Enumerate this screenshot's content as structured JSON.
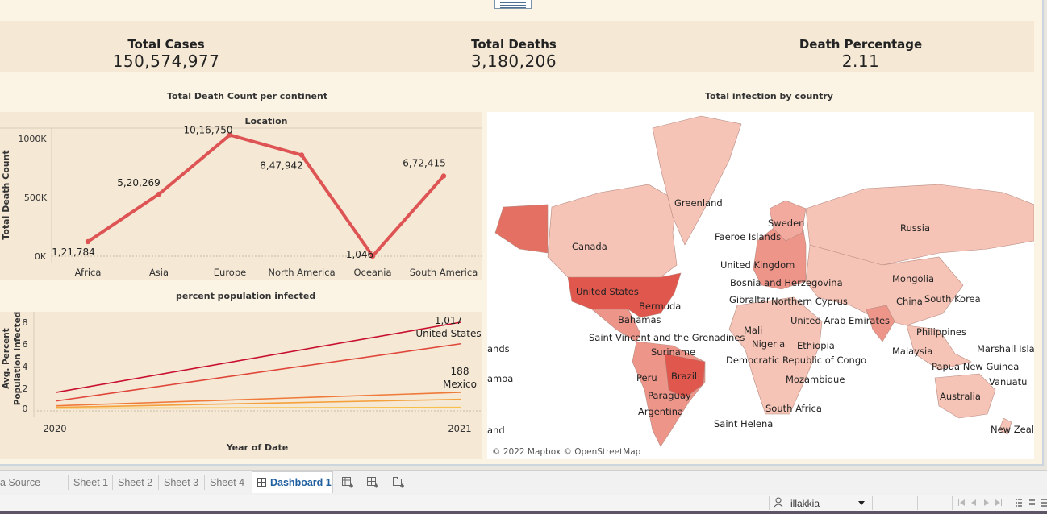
{
  "kpis": [
    {
      "title": "Total Cases",
      "value": "150,574,977"
    },
    {
      "title": "Total Deaths",
      "value": "3,180,206"
    },
    {
      "title": "Death Percentage",
      "value": "2.11"
    }
  ],
  "death_chart": {
    "section_title": "Total Death Count per continent",
    "header": "Location",
    "ylabel": "Total Death Count",
    "ticks": [
      "1000K",
      "500K",
      "0K"
    ]
  },
  "infection_chart": {
    "section_title": "percent population infected",
    "ylabel_line1": "Avg. Percent",
    "ylabel_line2": "Population Infected",
    "xlabel": "Year of Date",
    "yticks": [
      "8",
      "6",
      "4",
      "2",
      "0"
    ],
    "xticks": [
      "2020",
      "2021"
    ],
    "annotations": [
      {
        "value": "1,017",
        "label": "United States"
      },
      {
        "value": "188",
        "label": "Mexico"
      }
    ]
  },
  "chart_data": [
    {
      "type": "line",
      "title": "Total Death Count per continent",
      "xlabel": "Location",
      "ylabel": "Total Death Count",
      "categories": [
        "Africa",
        "Asia",
        "Europe",
        "North America",
        "Oceania",
        "South America"
      ],
      "values": [
        121784,
        520269,
        1016750,
        847942,
        1046,
        672415
      ],
      "labels": [
        "1,21,784",
        "5,20,269",
        "10,16,750",
        "8,47,942",
        "1,046",
        "6,72,415"
      ],
      "ylim": [
        0,
        1050000
      ],
      "color": "#de5454"
    },
    {
      "type": "line",
      "title": "percent population infected",
      "xlabel": "Year of Date",
      "ylabel": "Avg. Percent Population Infected",
      "x": [
        2020,
        2021
      ],
      "ylim": [
        -0.3,
        9
      ],
      "series": [
        {
          "name": "United States",
          "values": [
            1.5,
            8.0
          ],
          "color": "#c8102e"
        },
        {
          "name": "",
          "values": [
            0.7,
            6.0
          ],
          "color": "#e0473b"
        },
        {
          "name": "Mexico",
          "values": [
            0.25,
            1.5
          ],
          "color": "#f07a3a"
        },
        {
          "name": "",
          "values": [
            0.1,
            0.85
          ],
          "color": "#f5a03a"
        },
        {
          "name": "",
          "values": [
            0.02,
            0.1
          ],
          "color": "#f7c04a"
        }
      ]
    }
  ],
  "map": {
    "section_title": "Total infection by country",
    "credit": "© 2022 Mapbox © OpenStreetMap",
    "labels": [
      "Greenland",
      "Sweden",
      "Faeroe Islands",
      "Russia",
      "Canada",
      "United Kingdom",
      "Bosnia and Herzegovina",
      "Mongolia",
      "United States",
      "Gibraltar",
      "Northern Cyprus",
      "China",
      "South Korea",
      "Bermuda",
      "Bahamas",
      "United Arab Emirates",
      "Philippines",
      "Saint Vincent and the Grenadines",
      "Mali",
      "Nigeria",
      "Ethiopia",
      "Malaysia",
      "Marshall Isla",
      "Suriname",
      "Democratic Republic of Congo",
      "Papua New Guinea",
      "Peru",
      "Brazil",
      "Mozambique",
      "Vanuatu",
      "Paraguay",
      "Australia",
      "South Africa",
      "Argentina",
      "Saint Helena",
      "New Zeal",
      "ands",
      "amoa",
      "and"
    ]
  },
  "tabs": {
    "data_source": "a Source",
    "sheets": [
      "Sheet 1",
      "Sheet 2",
      "Sheet 3",
      "Sheet 4"
    ],
    "active": "Dashboard 1"
  },
  "status": {
    "user": "illakkia"
  }
}
